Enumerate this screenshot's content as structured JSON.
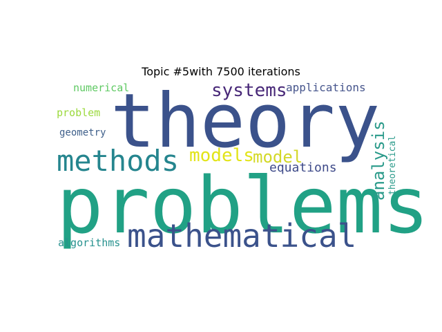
{
  "title": "Topic #5with 7500 iterations",
  "words": [
    {
      "key": "theory",
      "text": "theory",
      "color": "#3b528b"
    },
    {
      "key": "problems",
      "text": "problems",
      "color": "#21a185"
    },
    {
      "key": "mathematical",
      "text": "mathematical",
      "color": "#3b528b"
    },
    {
      "key": "methods",
      "text": "methods",
      "color": "#25858e"
    },
    {
      "key": "systems",
      "text": "systems",
      "color": "#482878"
    },
    {
      "key": "analysis",
      "text": "analysis",
      "color": "#2a9a8a"
    },
    {
      "key": "models",
      "text": "models",
      "color": "#e2e418"
    },
    {
      "key": "model",
      "text": "model",
      "color": "#d3d828"
    },
    {
      "key": "equations",
      "text": "equations",
      "color": "#3e4a89"
    },
    {
      "key": "applications",
      "text": "applications",
      "color": "#46558c"
    },
    {
      "key": "numerical",
      "text": "numerical",
      "color": "#5ec962"
    },
    {
      "key": "problem",
      "text": "problem",
      "color": "#9bd93c"
    },
    {
      "key": "geometry",
      "text": "geometry",
      "color": "#3e5f8a"
    },
    {
      "key": "theoretical",
      "text": "theoretical",
      "color": "#2a9a8a"
    },
    {
      "key": "algorithms",
      "text": "algorithms",
      "color": "#26918e"
    }
  ]
}
